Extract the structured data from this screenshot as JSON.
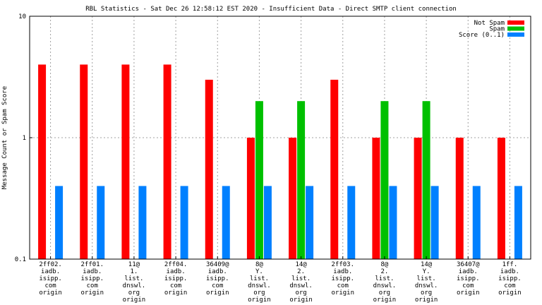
{
  "chart_data": {
    "type": "bar",
    "title": "RBL Statistics - Sat Dec 26 12:58:12 EST 2020 - Insufficient Data - Direct SMTP client connection",
    "xlabel": "",
    "ylabel": "Message Count or Spam Score",
    "scale": "log",
    "ylim": [
      0.1,
      10
    ],
    "y_ticks": [
      "0.1",
      "1",
      "10"
    ],
    "grid": true,
    "legend_position": "top-right",
    "categories": [
      [
        "2ff02.",
        "iadb.",
        "isipp.",
        "com",
        "origin"
      ],
      [
        "2ff01.",
        "iadb.",
        "isipp.",
        "com",
        "origin"
      ],
      [
        "11@",
        "1.",
        "list.",
        "dnswl.",
        "org",
        "origin"
      ],
      [
        "2ff04.",
        "iadb.",
        "isipp.",
        "com",
        "origin"
      ],
      [
        "36409@",
        "iadb.",
        "isipp.",
        "com",
        "origin"
      ],
      [
        "8@",
        "Y.",
        "list.",
        "dnswl.",
        "org",
        "origin"
      ],
      [
        "14@",
        "2.",
        "list.",
        "dnswl.",
        "org",
        "origin"
      ],
      [
        "2ff03.",
        "iadb.",
        "isipp.",
        "com",
        "origin"
      ],
      [
        "8@",
        "2.",
        "list.",
        "dnswl.",
        "org",
        "origin"
      ],
      [
        "14@",
        "Y.",
        "list.",
        "dnswl.",
        "org",
        "origin"
      ],
      [
        "36407@",
        "iadb.",
        "isipp.",
        "com",
        "origin"
      ],
      [
        "1ff.",
        "iadb.",
        "isipp.",
        "com",
        "origin"
      ]
    ],
    "series": [
      {
        "name": "Not Spam",
        "color": "#ff0000",
        "values": [
          4,
          4,
          4,
          4,
          3,
          1,
          1,
          3,
          1,
          1,
          1,
          1
        ]
      },
      {
        "name": "Spam",
        "color": "#00c000",
        "values": [
          null,
          null,
          null,
          null,
          null,
          2,
          2,
          null,
          2,
          2,
          null,
          null
        ]
      },
      {
        "name": "Score (0..1)",
        "color": "#0080ff",
        "values": [
          0.4,
          0.4,
          0.4,
          0.4,
          0.4,
          0.4,
          0.4,
          0.4,
          0.4,
          0.4,
          0.4,
          0.4
        ]
      }
    ]
  }
}
